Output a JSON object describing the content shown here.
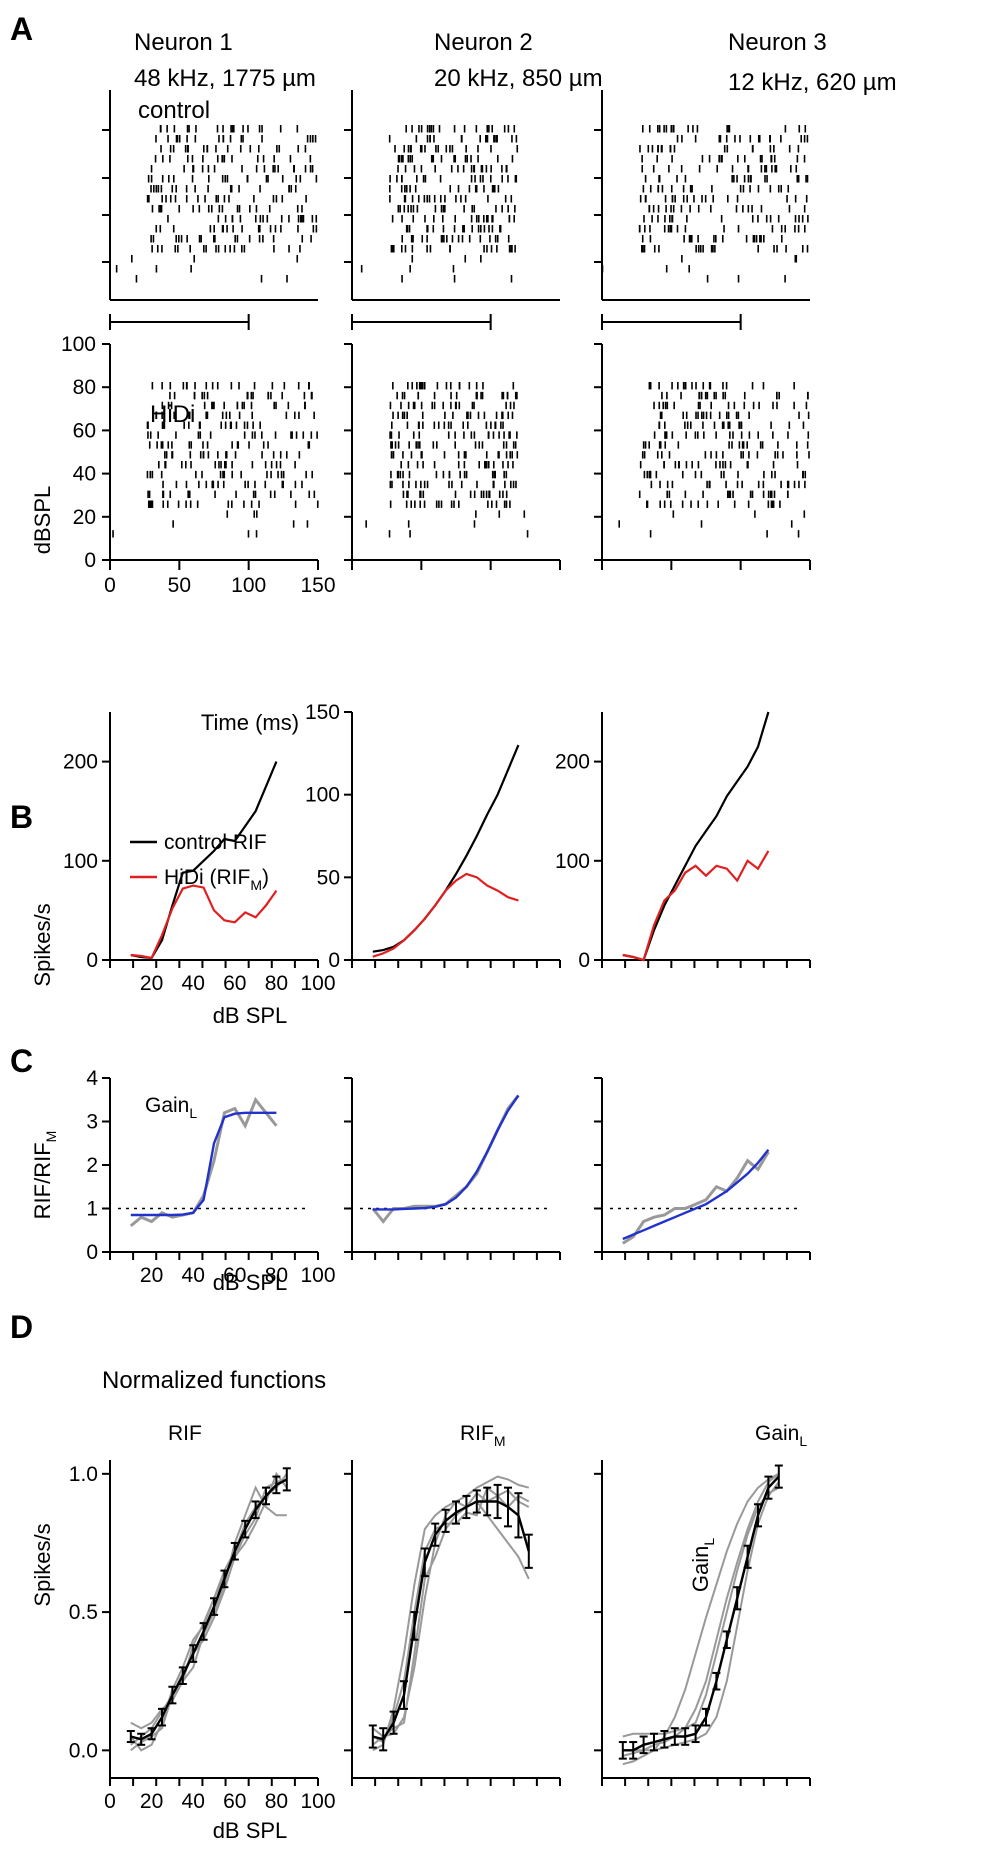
{
  "figure": {
    "panels": [
      "A",
      "B",
      "C",
      "D"
    ]
  },
  "chart_data": [
    {
      "id": "A",
      "type": "scatter",
      "subtype": "spike-raster",
      "neurons": [
        {
          "name": "Neuron 1",
          "info": "48 kHz, 1775  µm"
        },
        {
          "name": "Neuron 2",
          "info": "20 kHz, 850  µm"
        },
        {
          "name": "Neuron 3",
          "info": "12 kHz, 620  µm"
        }
      ],
      "row_labels": [
        "control",
        "HiDi"
      ],
      "xlabel": "Time (ms)",
      "xlim": [
        0,
        150
      ],
      "xticks": [
        "0",
        "50",
        "100",
        "150"
      ],
      "ylabel": "dBSPL",
      "ylim": [
        0,
        100
      ],
      "yticks": [
        "0",
        "20",
        "40",
        "60",
        "80",
        "100"
      ],
      "stimulus_bar_ms": [
        0,
        100
      ],
      "response_onset_ms": 27,
      "response_offset_ms": [
        150,
        120,
        150
      ],
      "spike_density_note": "dense raster of spikes from ~27 ms to ~150 ms at 10-80 dB SPL"
    },
    {
      "id": "B",
      "type": "line",
      "xlabel": "dB SPL",
      "ylabel": "Spikes/s",
      "xlim": [
        0,
        100
      ],
      "xticks": [
        "20",
        "40",
        "60",
        "80",
        "100"
      ],
      "legend": {
        "control": "control RIF",
        "hidi": "HiDi (RIF",
        "hidi_sub": "M",
        "hidi_close": ")"
      },
      "colors": {
        "control": "#000000",
        "hidi": "#e02020"
      },
      "plots": [
        {
          "ylim": [
            0,
            250
          ],
          "yticks": [
            "0",
            "100",
            "200"
          ],
          "x": [
            10,
            15,
            20,
            25,
            30,
            35,
            40,
            45,
            50,
            55,
            60,
            65,
            70,
            75,
            80
          ],
          "control": [
            5,
            3,
            2,
            20,
            55,
            88,
            90,
            100,
            110,
            122,
            120,
            135,
            150,
            175,
            200
          ],
          "hidi": [
            5,
            4,
            2,
            25,
            52,
            72,
            75,
            73,
            50,
            40,
            38,
            48,
            43,
            55,
            70
          ]
        },
        {
          "ylim": [
            0,
            150
          ],
          "yticks": [
            "0",
            "50",
            "100",
            "150"
          ],
          "x": [
            10,
            15,
            20,
            25,
            30,
            35,
            40,
            45,
            50,
            55,
            60,
            65,
            70,
            75,
            80
          ],
          "control": [
            5,
            6,
            8,
            12,
            18,
            25,
            33,
            42,
            52,
            63,
            75,
            88,
            100,
            115,
            130
          ],
          "hidi": [
            2,
            4,
            7,
            12,
            18,
            25,
            33,
            42,
            48,
            52,
            50,
            45,
            42,
            38,
            36
          ]
        },
        {
          "ylim": [
            0,
            250
          ],
          "yticks": [
            "0",
            "100",
            "200"
          ],
          "x": [
            10,
            15,
            20,
            25,
            30,
            35,
            40,
            45,
            50,
            55,
            60,
            65,
            70,
            75,
            80
          ],
          "control": [
            5,
            3,
            0,
            30,
            55,
            75,
            95,
            115,
            130,
            145,
            165,
            180,
            195,
            215,
            250
          ],
          "hidi": [
            5,
            3,
            0,
            35,
            60,
            70,
            88,
            95,
            85,
            95,
            92,
            80,
            100,
            92,
            110
          ]
        }
      ]
    },
    {
      "id": "C",
      "type": "line",
      "xlabel": "dB SPL",
      "ylabel": "RIF/RIF",
      "ylabel_sub": "M",
      "xlim": [
        0,
        100
      ],
      "xticks": [
        "20",
        "40",
        "60",
        "80",
        "100"
      ],
      "ylim": [
        0,
        4
      ],
      "yticks": [
        "0",
        "1",
        "2",
        "3",
        "4"
      ],
      "annotation": "Gain",
      "annotation_sub": "L",
      "colors": {
        "data": "#999999",
        "fit": "#2233cc"
      },
      "plots": [
        {
          "x": [
            10,
            15,
            20,
            25,
            30,
            35,
            40,
            45,
            50,
            55,
            60,
            65,
            70,
            75,
            80
          ],
          "data": [
            0.6,
            0.8,
            0.7,
            0.9,
            0.8,
            0.85,
            0.9,
            1.3,
            2.1,
            3.2,
            3.3,
            2.9,
            3.5,
            3.2,
            2.9
          ],
          "fit": [
            0.85,
            0.85,
            0.85,
            0.85,
            0.85,
            0.86,
            0.9,
            1.2,
            2.5,
            3.1,
            3.18,
            3.2,
            3.2,
            3.2,
            3.2
          ]
        },
        {
          "x": [
            10,
            15,
            20,
            25,
            30,
            35,
            40,
            45,
            50,
            55,
            60,
            65,
            70,
            75,
            80
          ],
          "data": [
            1.0,
            0.7,
            1.0,
            1.0,
            1.05,
            1.05,
            1.05,
            1.1,
            1.3,
            1.5,
            1.8,
            2.3,
            2.8,
            3.3,
            3.6
          ],
          "fit": [
            0.98,
            0.98,
            0.98,
            0.99,
            1.0,
            1.01,
            1.04,
            1.1,
            1.25,
            1.5,
            1.85,
            2.3,
            2.8,
            3.25,
            3.6
          ]
        },
        {
          "x": [
            10,
            15,
            20,
            25,
            30,
            35,
            40,
            45,
            50,
            55,
            60,
            65,
            70,
            75,
            80
          ],
          "data": [
            0.2,
            0.35,
            0.7,
            0.8,
            0.85,
            1.0,
            1.0,
            1.1,
            1.2,
            1.5,
            1.4,
            1.7,
            2.1,
            1.9,
            2.3
          ],
          "fit": [
            0.3,
            0.4,
            0.5,
            0.6,
            0.7,
            0.8,
            0.9,
            1.0,
            1.1,
            1.25,
            1.4,
            1.6,
            1.8,
            2.05,
            2.35
          ]
        }
      ]
    },
    {
      "id": "D",
      "type": "line",
      "title": "Normalized functions",
      "xlabel": "dB SPL",
      "xlim": [
        0,
        100
      ],
      "xticks": [
        "0",
        "20",
        "40",
        "60",
        "80",
        "100"
      ],
      "colors": {
        "individual": "#999999",
        "mean": "#000000"
      },
      "plots": [
        {
          "title": "RIF",
          "title_sub": "",
          "ylabel": "Spikes/s",
          "ylabel_sub": "",
          "ylim": [
            -0.1,
            1.05
          ],
          "yticks": [
            "0.0",
            "0.5",
            "1.0"
          ],
          "x": [
            10,
            15,
            20,
            25,
            30,
            35,
            40,
            45,
            50,
            55,
            60,
            65,
            70,
            75,
            80,
            85
          ],
          "mean": [
            0.05,
            0.04,
            0.06,
            0.12,
            0.2,
            0.27,
            0.35,
            0.43,
            0.52,
            0.62,
            0.72,
            0.8,
            0.87,
            0.92,
            0.96,
            0.98
          ],
          "err": [
            0.02,
            0.02,
            0.02,
            0.03,
            0.03,
            0.03,
            0.03,
            0.03,
            0.03,
            0.03,
            0.03,
            0.03,
            0.03,
            0.03,
            0.03,
            0.04
          ],
          "individuals": [
            [
              0.05,
              0.0,
              0.02,
              0.1,
              0.22,
              0.3,
              0.4,
              0.45,
              0.55,
              0.65,
              0.72,
              0.82,
              0.88,
              0.92,
              0.95,
              1.0
            ],
            [
              0.1,
              0.08,
              0.1,
              0.15,
              0.18,
              0.25,
              0.3,
              0.42,
              0.5,
              0.6,
              0.75,
              0.85,
              0.95,
              0.88,
              0.85,
              0.85
            ],
            [
              0.0,
              0.03,
              0.05,
              0.08,
              0.2,
              0.28,
              0.35,
              0.4,
              0.48,
              0.58,
              0.7,
              0.78,
              0.84,
              0.95,
              0.97,
              0.98
            ],
            [
              0.02,
              0.05,
              0.08,
              0.14,
              0.2,
              0.25,
              0.38,
              0.46,
              0.55,
              0.63,
              0.7,
              0.75,
              0.82,
              0.9,
              1.0,
              0.95
            ]
          ]
        },
        {
          "title": "RIF",
          "title_sub": "M",
          "ylabel": "",
          "ylabel_sub": "",
          "ylim": [
            -0.1,
            1.05
          ],
          "yticks": [],
          "x": [
            10,
            15,
            20,
            25,
            30,
            35,
            40,
            45,
            50,
            55,
            60,
            65,
            70,
            75,
            80,
            85
          ],
          "mean": [
            0.05,
            0.04,
            0.1,
            0.2,
            0.45,
            0.68,
            0.78,
            0.83,
            0.86,
            0.88,
            0.9,
            0.9,
            0.9,
            0.88,
            0.85,
            0.72
          ],
          "err": [
            0.04,
            0.04,
            0.04,
            0.05,
            0.05,
            0.05,
            0.04,
            0.04,
            0.04,
            0.04,
            0.04,
            0.05,
            0.06,
            0.07,
            0.08,
            0.06
          ],
          "individuals": [
            [
              0.0,
              0.02,
              0.15,
              0.35,
              0.6,
              0.8,
              0.85,
              0.88,
              0.9,
              0.92,
              0.95,
              0.97,
              0.99,
              0.98,
              0.96,
              0.95
            ],
            [
              0.08,
              0.05,
              0.08,
              0.1,
              0.35,
              0.62,
              0.7,
              0.8,
              0.85,
              0.88,
              0.9,
              0.85,
              0.8,
              0.75,
              0.7,
              0.62
            ],
            [
              0.05,
              0.03,
              0.12,
              0.25,
              0.5,
              0.72,
              0.8,
              0.82,
              0.82,
              0.86,
              0.85,
              0.95,
              0.92,
              0.88,
              0.92,
              0.9
            ],
            [
              0.02,
              0.05,
              0.06,
              0.12,
              0.3,
              0.55,
              0.75,
              0.85,
              0.9,
              0.88,
              0.93,
              0.9,
              0.92,
              0.94,
              0.9,
              0.88
            ]
          ]
        },
        {
          "title": "Gain",
          "title_sub": "L",
          "ylabel": "Gain",
          "ylabel_sub": "L",
          "ylim": [
            -0.1,
            1.05
          ],
          "yticks": [],
          "x": [
            10,
            15,
            20,
            25,
            30,
            35,
            40,
            45,
            50,
            55,
            60,
            65,
            70,
            75,
            80,
            85
          ],
          "mean": [
            0.0,
            0.0,
            0.02,
            0.03,
            0.04,
            0.05,
            0.05,
            0.06,
            0.12,
            0.25,
            0.4,
            0.55,
            0.7,
            0.85,
            0.95,
            0.99
          ],
          "err": [
            0.03,
            0.03,
            0.03,
            0.03,
            0.03,
            0.03,
            0.03,
            0.03,
            0.03,
            0.03,
            0.03,
            0.04,
            0.04,
            0.04,
            0.04,
            0.04
          ],
          "individuals": [
            [
              0.05,
              0.06,
              0.06,
              0.06,
              0.06,
              0.07,
              0.08,
              0.1,
              0.2,
              0.35,
              0.5,
              0.65,
              0.78,
              0.88,
              0.93,
              0.95
            ],
            [
              -0.05,
              -0.04,
              -0.02,
              0.0,
              0.05,
              0.12,
              0.22,
              0.35,
              0.48,
              0.6,
              0.72,
              0.82,
              0.9,
              0.95,
              0.98,
              1.0
            ],
            [
              0.0,
              0.0,
              0.0,
              0.0,
              0.01,
              0.02,
              0.03,
              0.04,
              0.06,
              0.12,
              0.25,
              0.45,
              0.65,
              0.82,
              0.92,
              0.97
            ],
            [
              -0.02,
              -0.01,
              0.0,
              0.02,
              0.03,
              0.05,
              0.08,
              0.15,
              0.25,
              0.4,
              0.55,
              0.68,
              0.8,
              0.9,
              0.97,
              1.0
            ]
          ]
        }
      ]
    }
  ]
}
